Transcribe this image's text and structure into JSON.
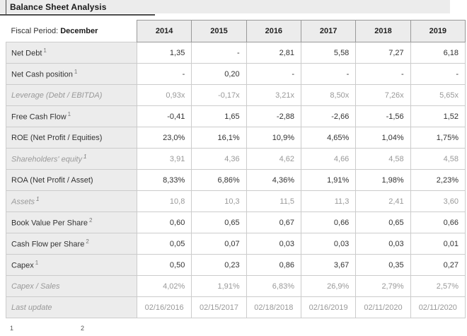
{
  "title": "Balance Sheet Analysis",
  "table": {
    "header": {
      "label_prefix": "Fiscal Period:",
      "label_bold": "December",
      "years": [
        "2014",
        "2015",
        "2016",
        "2017",
        "2018",
        "2019"
      ]
    },
    "rows": [
      {
        "label": "Net Debt",
        "sup": "1",
        "style": "normal",
        "values": [
          "1,35",
          "-",
          "2,81",
          "5,58",
          "7,27",
          "6,18"
        ]
      },
      {
        "label": "Net Cash position",
        "sup": "1",
        "style": "normal",
        "values": [
          "-",
          "0,20",
          "-",
          "-",
          "-",
          "-"
        ]
      },
      {
        "label": "Leverage (Debt / EBITDA)",
        "sup": "",
        "style": "muted",
        "values": [
          "0,93x",
          "-0,17x",
          "3,21x",
          "8,50x",
          "7,26x",
          "5,65x"
        ]
      },
      {
        "label": "Free Cash Flow",
        "sup": "1",
        "style": "normal",
        "values": [
          "-0,41",
          "1,65",
          "-2,88",
          "-2,66",
          "-1,56",
          "1,52"
        ]
      },
      {
        "label": "ROE (Net Profit / Equities)",
        "sup": "",
        "style": "normal",
        "values": [
          "23,0%",
          "16,1%",
          "10,9%",
          "4,65%",
          "1,04%",
          "1,75%"
        ]
      },
      {
        "label": "Shareholders' equity",
        "sup": "1",
        "style": "muted",
        "values": [
          "3,91",
          "4,36",
          "4,62",
          "4,66",
          "4,58",
          "4,58"
        ]
      },
      {
        "label": "ROA (Net Profit / Asset)",
        "sup": "",
        "style": "normal",
        "values": [
          "8,33%",
          "6,86%",
          "4,36%",
          "1,91%",
          "1,98%",
          "2,23%"
        ]
      },
      {
        "label": "Assets",
        "sup": "1",
        "style": "muted",
        "values": [
          "10,8",
          "10,3",
          "11,5",
          "11,3",
          "2,41",
          "3,60"
        ]
      },
      {
        "label": "Book Value Per Share",
        "sup": "2",
        "style": "normal",
        "values": [
          "0,60",
          "0,65",
          "0,67",
          "0,66",
          "0,65",
          "0,66"
        ]
      },
      {
        "label": "Cash Flow per Share",
        "sup": "2",
        "style": "normal",
        "values": [
          "0,05",
          "0,07",
          "0,03",
          "0,03",
          "0,03",
          "0,01"
        ]
      },
      {
        "label": "Capex",
        "sup": "1",
        "style": "normal",
        "values": [
          "0,50",
          "0,23",
          "0,86",
          "3,67",
          "0,35",
          "0,27"
        ]
      },
      {
        "label": "Capex / Sales",
        "sup": "",
        "style": "muted",
        "values": [
          "4,02%",
          "1,91%",
          "6,83%",
          "26,9%",
          "2,79%",
          "2,57%"
        ]
      },
      {
        "label": "Last update",
        "sup": "",
        "style": "muted",
        "align": "center",
        "values": [
          "02/16/2016",
          "02/15/2017",
          "02/18/2018",
          "02/16/2019",
          "02/11/2020",
          "02/11/2020"
        ]
      }
    ]
  },
  "footnotes": [
    "1",
    "2"
  ],
  "colors": {
    "band_bg": "#ececec",
    "label_bg": "#ececec",
    "border_light": "#cccccc",
    "border_dark": "#999999",
    "underline": "#4d4d4d",
    "text": "#333333",
    "muted_text": "#999999"
  }
}
